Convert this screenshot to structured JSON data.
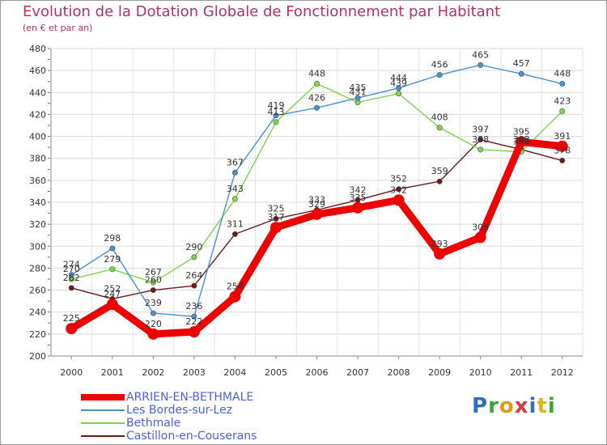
{
  "title": "Evolution de la Dotation Globale de Fonctionnement par Habitant",
  "subtitle": "(en € et par an)",
  "logo": {
    "text": "Proxiti",
    "letters": [
      {
        "ch": "P",
        "color": "#2f6fc0"
      },
      {
        "ch": "r",
        "color": "#36a836"
      },
      {
        "ch": "o",
        "color": "#e09a1a"
      },
      {
        "ch": "x",
        "color": "#d63c3c"
      },
      {
        "ch": "i",
        "color": "#2f6fc0"
      },
      {
        "ch": "t",
        "color": "#e0b41a"
      },
      {
        "ch": "i",
        "color": "#36a836"
      }
    ]
  },
  "chart_data": {
    "type": "line",
    "title": "Evolution de la Dotation Globale de Fonctionnement par Habitant",
    "subtitle": "(en € et par an)",
    "categories": [
      "2000",
      "2001",
      "2002",
      "2003",
      "2004",
      "2005",
      "2006",
      "2007",
      "2008",
      "2009",
      "2010",
      "2011",
      "2012"
    ],
    "ylim": [
      200,
      480
    ],
    "yticks": [
      200,
      220,
      240,
      260,
      280,
      300,
      320,
      340,
      360,
      380,
      400,
      420,
      440,
      460,
      480
    ],
    "grid": true,
    "legend_position": "bottom-left",
    "series": [
      {
        "name": "ARRIEN-EN-BETHMALE",
        "color": "#ee0000",
        "values": [
          225,
          247,
          220,
          222,
          254,
          317,
          329,
          335,
          342,
          293,
          308,
          395,
          391
        ]
      },
      {
        "name": "Les Bordes-sur-Lez",
        "color": "#4a90d0",
        "values": [
          274,
          298,
          239,
          236,
          367,
          419,
          426,
          435,
          444,
          456,
          465,
          457,
          448
        ]
      },
      {
        "name": "Bethmale",
        "color": "#7ed44a",
        "values": [
          270,
          279,
          267,
          290,
          343,
          413,
          448,
          431,
          439,
          408,
          388,
          386,
          423
        ]
      },
      {
        "name": "Castillon-en-Couserans",
        "color": "#6b1a1a",
        "values": [
          262,
          252,
          260,
          264,
          311,
          325,
          333,
          342,
          352,
          359,
          397,
          388,
          378
        ]
      }
    ]
  }
}
